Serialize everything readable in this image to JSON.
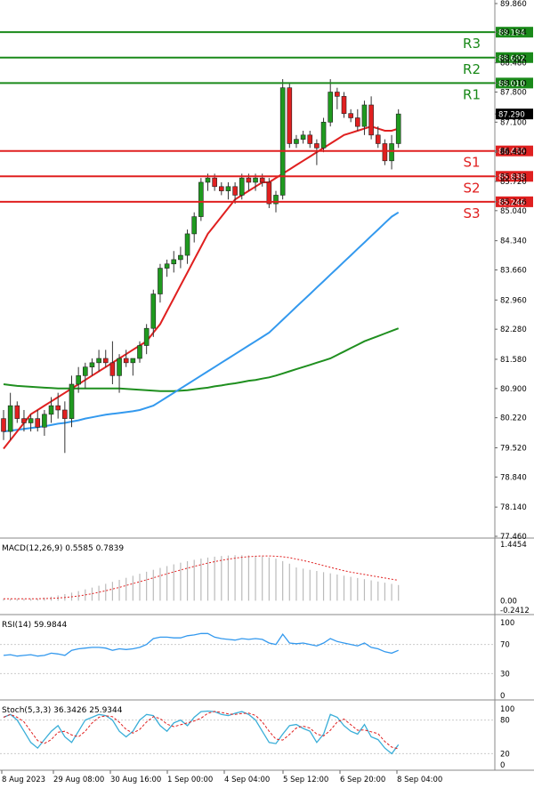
{
  "price_axis": {
    "labels": [
      "89.860",
      "89.194",
      "88.602",
      "88.480",
      "88.010",
      "87.800",
      "87.290",
      "87.100",
      "86.430",
      "86.400",
      "85.838",
      "85.720",
      "85.246",
      "85.040",
      "84.340",
      "83.660",
      "82.960",
      "82.280",
      "81.580",
      "80.900",
      "80.220",
      "79.520",
      "78.840",
      "78.140",
      "77.460"
    ],
    "current_price": "87.290"
  },
  "levels": [
    {
      "name": "R3",
      "price": 89.194,
      "label": "89.194",
      "color": "#1a8a1a"
    },
    {
      "name": "R2",
      "price": 88.602,
      "label": "88.602",
      "color": "#1a8a1a"
    },
    {
      "name": "R1",
      "price": 88.01,
      "label": "88.010",
      "color": "#1a8a1a"
    },
    {
      "name": "S1",
      "price": 86.43,
      "label": "86.430",
      "color": "#e02020"
    },
    {
      "name": "S2",
      "price": 85.838,
      "label": "85.838",
      "color": "#e02020"
    },
    {
      "name": "S3",
      "price": 85.246,
      "label": "85.246",
      "color": "#e02020"
    }
  ],
  "panels": {
    "macd": {
      "title": "MACD(12,26,9) 0.5585 0.7839",
      "axis": [
        "1.4454",
        "0.00",
        "-0.2412"
      ]
    },
    "rsi": {
      "title": "RSI(14) 59.9844",
      "axis": [
        "100",
        "70",
        "30",
        "0"
      ]
    },
    "stoch": {
      "title": "Stoch(5,3,3) 36.3426 25.9344",
      "axis": [
        "100",
        "80",
        "20",
        "0"
      ]
    }
  },
  "time_axis": [
    "8 Aug 2023",
    "29 Aug 08:00",
    "30 Aug 16:00",
    "1 Sep 00:00",
    "4 Sep 04:00",
    "5 Sep 12:00",
    "6 Sep 20:00",
    "8 Sep 04:00"
  ],
  "colors": {
    "bull": "#1f9a1f",
    "bear": "#e02020",
    "ma_fast": "#e02020",
    "ma_mid": "#3399ee",
    "ma_slow": "#1f8f1f",
    "grid": "#cccccc"
  },
  "chart_data": {
    "type": "candlestick",
    "candles": [
      [
        80.2,
        80.4,
        79.7,
        79.9
      ],
      [
        79.9,
        80.8,
        79.7,
        80.5
      ],
      [
        80.5,
        80.6,
        80.1,
        80.2
      ],
      [
        80.2,
        80.4,
        79.9,
        80.1
      ],
      [
        80.1,
        80.3,
        79.9,
        80.2
      ],
      [
        80.2,
        80.4,
        79.9,
        80.0
      ],
      [
        80.0,
        80.4,
        79.8,
        80.3
      ],
      [
        80.3,
        80.7,
        80.1,
        80.5
      ],
      [
        80.5,
        80.8,
        80.2,
        80.4
      ],
      [
        80.4,
        80.6,
        79.4,
        80.2
      ],
      [
        80.2,
        81.2,
        80.0,
        81.0
      ],
      [
        81.0,
        81.4,
        80.8,
        81.2
      ],
      [
        81.2,
        81.5,
        80.9,
        81.4
      ],
      [
        81.4,
        81.6,
        81.2,
        81.5
      ],
      [
        81.5,
        81.8,
        81.3,
        81.6
      ],
      [
        81.6,
        81.8,
        81.4,
        81.5
      ],
      [
        81.5,
        82.0,
        81.0,
        81.2
      ],
      [
        81.2,
        81.7,
        80.8,
        81.6
      ],
      [
        81.6,
        81.8,
        81.4,
        81.5
      ],
      [
        81.5,
        81.6,
        81.2,
        81.6
      ],
      [
        81.6,
        82.0,
        81.5,
        81.9
      ],
      [
        81.9,
        82.4,
        81.7,
        82.3
      ],
      [
        82.3,
        83.2,
        82.1,
        83.1
      ],
      [
        83.1,
        83.8,
        82.9,
        83.7
      ],
      [
        83.7,
        83.9,
        83.5,
        83.8
      ],
      [
        83.8,
        84.1,
        83.6,
        83.9
      ],
      [
        83.9,
        84.2,
        83.7,
        84.0
      ],
      [
        84.0,
        84.6,
        83.8,
        84.5
      ],
      [
        84.5,
        85.0,
        84.3,
        84.9
      ],
      [
        84.9,
        85.8,
        84.8,
        85.7
      ],
      [
        85.7,
        85.9,
        85.5,
        85.8
      ],
      [
        85.8,
        85.9,
        85.5,
        85.6
      ],
      [
        85.6,
        85.7,
        85.4,
        85.5
      ],
      [
        85.5,
        85.7,
        85.3,
        85.6
      ],
      [
        85.6,
        85.7,
        85.2,
        85.4
      ],
      [
        85.4,
        85.9,
        85.3,
        85.8
      ],
      [
        85.8,
        85.9,
        85.5,
        85.7
      ],
      [
        85.7,
        85.9,
        85.5,
        85.8
      ],
      [
        85.8,
        85.9,
        85.6,
        85.7
      ],
      [
        85.7,
        85.8,
        85.1,
        85.2
      ],
      [
        85.2,
        85.5,
        85.0,
        85.4
      ],
      [
        85.4,
        88.1,
        85.3,
        87.9
      ],
      [
        87.9,
        88.0,
        86.5,
        86.6
      ],
      [
        86.6,
        86.8,
        86.5,
        86.7
      ],
      [
        86.7,
        86.9,
        86.6,
        86.8
      ],
      [
        86.8,
        86.9,
        86.5,
        86.6
      ],
      [
        86.6,
        86.7,
        86.1,
        86.5
      ],
      [
        86.5,
        87.2,
        86.4,
        87.1
      ],
      [
        87.1,
        88.1,
        87.0,
        87.8
      ],
      [
        87.8,
        87.9,
        87.4,
        87.7
      ],
      [
        87.7,
        87.8,
        87.2,
        87.3
      ],
      [
        87.3,
        87.4,
        87.1,
        87.2
      ],
      [
        87.2,
        87.4,
        86.9,
        87.0
      ],
      [
        87.0,
        87.6,
        86.8,
        87.5
      ],
      [
        87.5,
        87.7,
        86.7,
        86.8
      ],
      [
        86.8,
        87.0,
        86.5,
        86.6
      ],
      [
        86.6,
        86.7,
        86.1,
        86.2
      ],
      [
        86.2,
        86.8,
        86.0,
        86.6
      ],
      [
        86.6,
        87.4,
        86.5,
        87.29
      ]
    ],
    "ma_fast": [
      79.5,
      79.7,
      79.9,
      80.1,
      80.3,
      80.4,
      80.5,
      80.6,
      80.7,
      80.8,
      80.9,
      81.0,
      81.1,
      81.2,
      81.3,
      81.4,
      81.5,
      81.6,
      81.7,
      81.8,
      81.9,
      82.0,
      82.2,
      82.4,
      82.7,
      83.0,
      83.3,
      83.6,
      83.9,
      84.2,
      84.5,
      84.7,
      84.9,
      85.1,
      85.3,
      85.4,
      85.5,
      85.6,
      85.7,
      85.7,
      85.8,
      85.9,
      86.0,
      86.1,
      86.2,
      86.3,
      86.4,
      86.5,
      86.6,
      86.7,
      86.8,
      86.85,
      86.9,
      86.95,
      87.0,
      86.95,
      86.9,
      86.9,
      86.95
    ],
    "ma_mid": [
      79.9,
      79.92,
      79.94,
      79.96,
      79.98,
      80.0,
      80.02,
      80.05,
      80.08,
      80.1,
      80.13,
      80.16,
      80.2,
      80.23,
      80.26,
      80.29,
      80.31,
      80.33,
      80.35,
      80.37,
      80.4,
      80.45,
      80.5,
      80.6,
      80.7,
      80.8,
      80.9,
      81.0,
      81.1,
      81.2,
      81.3,
      81.4,
      81.5,
      81.6,
      81.7,
      81.8,
      81.9,
      82.0,
      82.1,
      82.2,
      82.35,
      82.5,
      82.65,
      82.8,
      82.95,
      83.1,
      83.25,
      83.4,
      83.55,
      83.7,
      83.85,
      84.0,
      84.15,
      84.3,
      84.45,
      84.6,
      84.75,
      84.9,
      85.0
    ],
    "ma_slow": [
      81.0,
      80.98,
      80.96,
      80.95,
      80.94,
      80.93,
      80.92,
      80.91,
      80.9,
      80.9,
      80.9,
      80.9,
      80.9,
      80.9,
      80.9,
      80.9,
      80.9,
      80.9,
      80.89,
      80.88,
      80.87,
      80.86,
      80.85,
      80.84,
      80.84,
      80.84,
      80.85,
      80.86,
      80.88,
      80.9,
      80.92,
      80.95,
      80.97,
      81.0,
      81.02,
      81.05,
      81.08,
      81.1,
      81.13,
      81.16,
      81.2,
      81.25,
      81.3,
      81.35,
      81.4,
      81.45,
      81.5,
      81.55,
      81.6,
      81.68,
      81.76,
      81.84,
      81.92,
      82.0,
      82.06,
      82.12,
      82.18,
      82.24,
      82.3
    ],
    "y_range": [
      77.46,
      89.86
    ]
  }
}
